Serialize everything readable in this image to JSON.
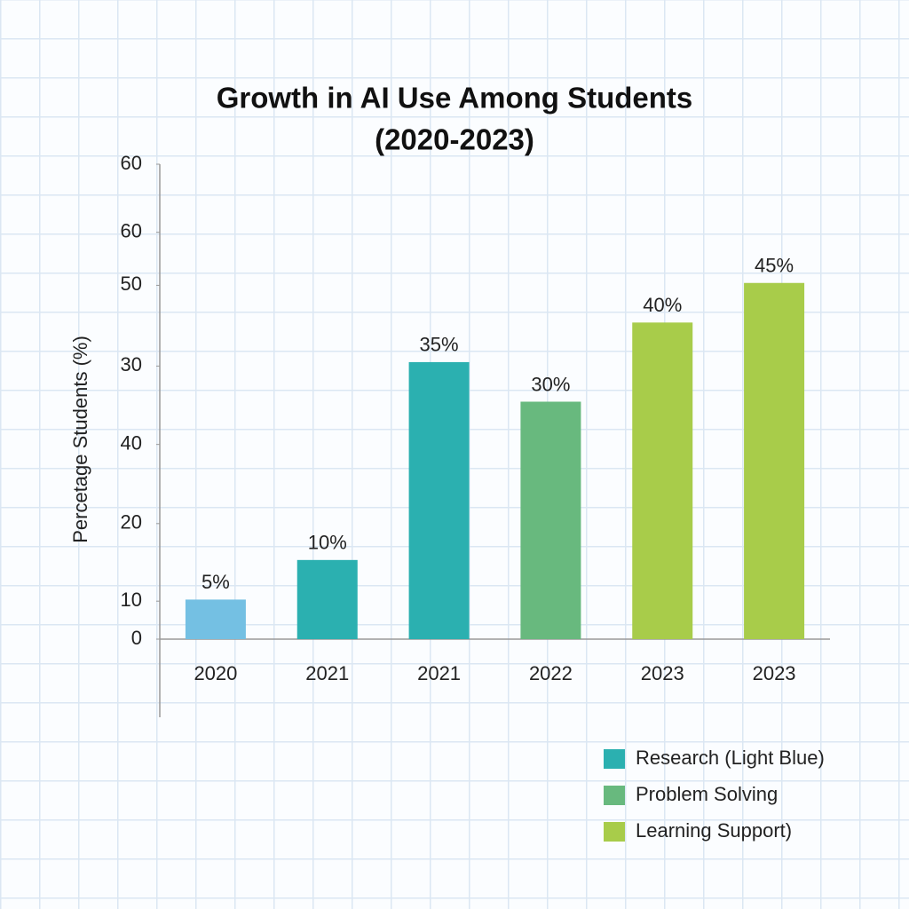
{
  "chart_data": {
    "type": "bar",
    "title": [
      "Growth in AI Use Among Students",
      "(2020-2023)"
    ],
    "y_label": "Percetage Students (%)",
    "categories": [
      "2020",
      "2021",
      "2021",
      "2022",
      "2023",
      "2023"
    ],
    "values": [
      5,
      10,
      35,
      30,
      40,
      45
    ],
    "value_labels": [
      "5%",
      "10%",
      "35%",
      "30%",
      "40%",
      "45%"
    ],
    "colors": [
      "#74c0e3",
      "#2bb0b0",
      "#2bb0b0",
      "#68b97e",
      "#a8cc4a",
      "#a8cc4a"
    ],
    "ylim": [
      0,
      60
    ],
    "yticks": [
      0,
      {
        "value": 4.8,
        "label": "10"
      },
      {
        "value": 14.6,
        "label": "20"
      },
      {
        "value": 24.6,
        "label": "40"
      },
      {
        "value": 34.5,
        "label": "30"
      },
      {
        "value": 44.7,
        "label": "50"
      },
      {
        "value": 51.4,
        "label": "60"
      },
      60
    ],
    "legend": [
      {
        "name": "Research (Light Blue)",
        "color": "#2bb0b0"
      },
      {
        "name": "Problem Solving",
        "color": "#68b97e"
      },
      {
        "name": "Learning Support)",
        "color": "#a8cc4a"
      }
    ]
  }
}
